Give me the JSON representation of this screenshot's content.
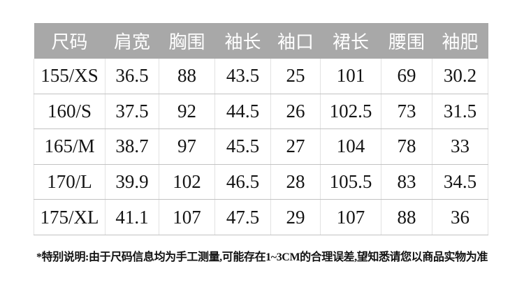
{
  "colors": {
    "page_bg": "#ffffff",
    "header_bg": "#a8a8a8",
    "header_text": "#ffffff",
    "cell_text": "#141414",
    "row_line": "#c2c2c2",
    "col_line": "#e2e2e2",
    "note_text": "#111111"
  },
  "chart_data": {
    "type": "table",
    "title": "",
    "columns": [
      "尺码",
      "肩宽",
      "胸围",
      "袖长",
      "袖口",
      "裙长",
      "腰围",
      "袖肥"
    ],
    "rows": [
      [
        "155/XS",
        "36.5",
        "88",
        "43.5",
        "25",
        "101",
        "69",
        "30.2"
      ],
      [
        "160/S",
        "37.5",
        "92",
        "44.5",
        "26",
        "102.5",
        "73",
        "31.5"
      ],
      [
        "165/M",
        "38.7",
        "97",
        "45.5",
        "27",
        "104",
        "78",
        "33"
      ],
      [
        "170/L",
        "39.9",
        "102",
        "46.5",
        "28",
        "105.5",
        "83",
        "34.5"
      ],
      [
        "175/XL",
        "41.1",
        "107",
        "47.5",
        "29",
        "107",
        "88",
        "36"
      ]
    ],
    "legend_position": "none",
    "grid": true
  },
  "note": "*特别说明:由于尺码信息均为手工测量,可能存在1~3CM的合理误差,望知悉请您以商品实物为准"
}
